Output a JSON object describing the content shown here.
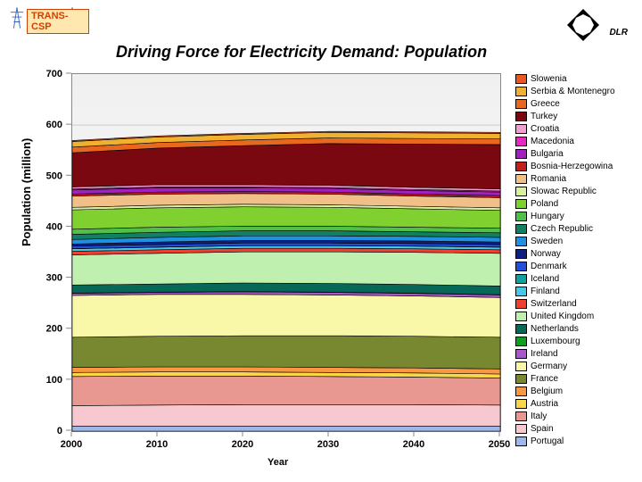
{
  "title": "Driving Force for Electricity Demand: Population",
  "logo_left": "TRANS-CSP",
  "logo_right": "DLR",
  "chart": {
    "type": "area",
    "ylabel": "Population (million)",
    "xlabel": "Year",
    "ylim": [
      0,
      700
    ],
    "ytick_step": 100,
    "xlim": [
      2000,
      2050
    ],
    "xtick_step": 10,
    "background": "#ffffff",
    "grid_color": "#cccccc",
    "plot_bg_gradient": [
      "#f0f0f0",
      "#ffffff"
    ],
    "series": [
      {
        "name": "Portugal",
        "color": "#9db8e8",
        "values": [
          10,
          10,
          10,
          10,
          10,
          10
        ]
      },
      {
        "name": "Spain",
        "color": "#f8c8d0",
        "values": [
          40,
          41,
          42,
          42,
          42,
          41
        ]
      },
      {
        "name": "Italy",
        "color": "#e89890",
        "values": [
          57,
          57,
          56,
          55,
          54,
          53
        ]
      },
      {
        "name": "Austria",
        "color": "#f8d848",
        "values": [
          8,
          8,
          8,
          8,
          8,
          8
        ]
      },
      {
        "name": "Belgium",
        "color": "#f89840",
        "values": [
          10,
          10,
          10,
          10,
          10,
          10
        ]
      },
      {
        "name": "France",
        "color": "#788830",
        "values": [
          59,
          60,
          61,
          62,
          62,
          62
        ]
      },
      {
        "name": "Germany",
        "color": "#f8f8a8",
        "values": [
          82,
          82,
          81,
          80,
          79,
          78
        ]
      },
      {
        "name": "Ireland",
        "color": "#a858c8",
        "values": [
          4,
          4,
          5,
          5,
          5,
          5
        ]
      },
      {
        "name": "Luxembourg",
        "color": "#10a020",
        "values": [
          0.5,
          0.5,
          0.5,
          0.5,
          0.5,
          0.5
        ]
      },
      {
        "name": "Netherlands",
        "color": "#086858",
        "values": [
          16,
          16,
          17,
          17,
          17,
          17
        ]
      },
      {
        "name": "United Kingdom",
        "color": "#c0f0b0",
        "values": [
          59,
          60,
          61,
          62,
          63,
          64
        ]
      },
      {
        "name": "Switzerland",
        "color": "#f04030",
        "values": [
          7,
          7,
          7,
          7,
          7,
          7
        ]
      },
      {
        "name": "Finland",
        "color": "#48c8e8",
        "values": [
          5,
          5,
          5,
          5,
          5,
          5
        ]
      },
      {
        "name": "Iceland",
        "color": "#10a0a0",
        "values": [
          0.3,
          0.3,
          0.3,
          0.3,
          0.3,
          0.3
        ]
      },
      {
        "name": "Denmark",
        "color": "#2050d8",
        "values": [
          5,
          5,
          5,
          5,
          5,
          5
        ]
      },
      {
        "name": "Norway",
        "color": "#102080",
        "values": [
          4,
          5,
          5,
          5,
          5,
          5
        ]
      },
      {
        "name": "Sweden",
        "color": "#2090e0",
        "values": [
          9,
          9,
          9,
          9,
          9,
          9
        ]
      },
      {
        "name": "Czech Republic",
        "color": "#108060",
        "values": [
          10,
          10,
          10,
          10,
          9,
          9
        ]
      },
      {
        "name": "Hungary",
        "color": "#50c048",
        "values": [
          10,
          10,
          9,
          9,
          9,
          9
        ]
      },
      {
        "name": "Poland",
        "color": "#80d030",
        "values": [
          38,
          38,
          38,
          37,
          36,
          35
        ]
      },
      {
        "name": "Slowac Republic",
        "color": "#d8f0a0",
        "values": [
          5,
          5,
          5,
          5,
          5,
          5
        ]
      },
      {
        "name": "Romania",
        "color": "#f0c088",
        "values": [
          22,
          22,
          21,
          21,
          20,
          20
        ]
      },
      {
        "name": "Bosnia-Herzegowina",
        "color": "#c02020",
        "values": [
          4,
          4,
          4,
          4,
          4,
          4
        ]
      },
      {
        "name": "Bulgaria",
        "color": "#a020c0",
        "values": [
          8,
          8,
          7,
          7,
          7,
          7
        ]
      },
      {
        "name": "Macedonia",
        "color": "#e828c0",
        "values": [
          2,
          2,
          2,
          2,
          2,
          2
        ]
      },
      {
        "name": "Croatia",
        "color": "#f0a0d0",
        "values": [
          4,
          4,
          4,
          4,
          4,
          4
        ]
      },
      {
        "name": "Turkey",
        "color": "#7a0810",
        "values": [
          67,
          72,
          77,
          82,
          85,
          87
        ]
      },
      {
        "name": "Greece",
        "color": "#e86820",
        "values": [
          11,
          11,
          11,
          11,
          11,
          11
        ]
      },
      {
        "name": "Serbia & Montenegro",
        "color": "#f0b030",
        "values": [
          11,
          11,
          11,
          11,
          11,
          11
        ]
      },
      {
        "name": "Slowenia",
        "color": "#e85820",
        "values": [
          2,
          2,
          2,
          2,
          2,
          2
        ]
      }
    ],
    "x_values": [
      2000,
      2010,
      2020,
      2030,
      2040,
      2050
    ]
  }
}
